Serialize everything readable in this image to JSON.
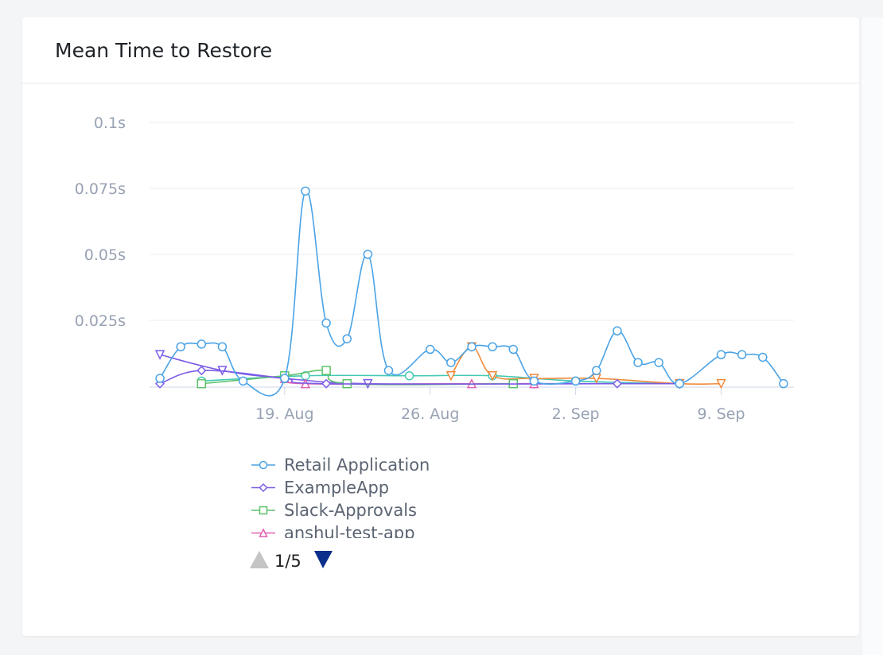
{
  "card": {
    "title": "Mean Time to Restore"
  },
  "colors": {
    "retail": "#4aa3e6",
    "example": "#7b5ce6",
    "slack": "#5cc26a",
    "anshul": "#e05fb0",
    "orange": "#ef8a3c",
    "teal": "#44c9b3",
    "grid": "#eceef1",
    "axis_text": "#98a2b3",
    "legend_text": "#5b6472",
    "nav_active": "#0b2f8a",
    "nav_inactive": "#c4c4c4"
  },
  "legend": {
    "items": [
      {
        "name": "Retail Application",
        "color": "#4aa3e6",
        "marker": "circle"
      },
      {
        "name": "ExampleApp",
        "color": "#7b5ce6",
        "marker": "diamond"
      },
      {
        "name": "Slack-Approvals",
        "color": "#5cc26a",
        "marker": "square"
      },
      {
        "name": "anshul-test-app",
        "color": "#e05fb0",
        "marker": "triangle"
      }
    ],
    "page_text": "1/5",
    "up_icon": "triangle-up-icon",
    "down_icon": "triangle-down-icon"
  },
  "chart_data": {
    "type": "line",
    "title": "Mean Time to Restore",
    "xlabel": "",
    "ylabel": "",
    "x_tick_labels": [
      "19. Aug",
      "26. Aug",
      "2. Sep",
      "9. Sep"
    ],
    "x_tick_days": [
      19,
      26,
      33,
      40
    ],
    "y_tick_labels": [
      "0.025s",
      "0.05s",
      "0.075s",
      "0.1s"
    ],
    "y_tick_values": [
      0.025,
      0.05,
      0.075,
      0.1
    ],
    "ylim": [
      0,
      0.1
    ],
    "xlim": [
      12.5,
      43.5
    ],
    "grid": true,
    "legend_position": "bottom-left",
    "series": [
      {
        "name": "Retail Application",
        "color": "#4aa3e6",
        "marker": "circle",
        "points": [
          [
            13,
            0.003
          ],
          [
            14,
            0.015
          ],
          [
            15,
            0.016
          ],
          [
            16,
            0.015
          ],
          [
            17,
            0.002
          ],
          [
            19,
            0.003
          ],
          [
            20,
            0.074
          ],
          [
            21,
            0.024
          ],
          [
            22,
            0.018
          ],
          [
            23,
            0.05
          ],
          [
            24,
            0.006
          ],
          [
            26,
            0.014
          ],
          [
            27,
            0.009
          ],
          [
            28,
            0.015
          ],
          [
            29,
            0.015
          ],
          [
            30,
            0.014
          ],
          [
            31,
            0.002
          ],
          [
            33,
            0.002
          ],
          [
            34,
            0.006
          ],
          [
            35,
            0.021
          ],
          [
            36,
            0.009
          ],
          [
            37,
            0.009
          ],
          [
            38,
            0.001
          ],
          [
            40,
            0.012
          ],
          [
            41,
            0.012
          ],
          [
            42,
            0.011
          ],
          [
            43,
            0.001
          ]
        ]
      },
      {
        "name": "ExampleApp",
        "color": "#7b5ce6",
        "marker": "diamond",
        "points": [
          [
            13,
            0.001
          ],
          [
            15,
            0.006
          ],
          [
            19,
            0.003
          ],
          [
            21,
            0.001
          ],
          [
            35,
            0.001
          ],
          [
            38,
            0.001
          ]
        ]
      },
      {
        "name": "Slack-Approvals",
        "color": "#5cc26a",
        "marker": "square",
        "points": [
          [
            15,
            0.001
          ],
          [
            19,
            0.004
          ],
          [
            21,
            0.006
          ],
          [
            22,
            0.001
          ],
          [
            30,
            0.001
          ]
        ]
      },
      {
        "name": "anshul-test-app",
        "color": "#e05fb0",
        "marker": "triangle",
        "points": [
          [
            19,
            0.003
          ],
          [
            20,
            0.001
          ],
          [
            28,
            0.001
          ],
          [
            31,
            0.001
          ]
        ]
      },
      {
        "name": "",
        "color": "#ef8a3c",
        "marker": "triangle-down",
        "points": [
          [
            27,
            0.004
          ],
          [
            28,
            0.015
          ],
          [
            29,
            0.004
          ],
          [
            31,
            0.003
          ],
          [
            34,
            0.003
          ],
          [
            38,
            0.001
          ],
          [
            40,
            0.001
          ]
        ]
      },
      {
        "name": "",
        "color": "#7b5ce6",
        "marker": "triangle-down",
        "points": [
          [
            13,
            0.012
          ],
          [
            16,
            0.006
          ],
          [
            19,
            0.003
          ],
          [
            23,
            0.001
          ],
          [
            31,
            0.001
          ],
          [
            38,
            0.001
          ]
        ]
      },
      {
        "name": "",
        "color": "#44c9b3",
        "marker": "circle",
        "points": [
          [
            15,
            0.002
          ],
          [
            20,
            0.004
          ],
          [
            25,
            0.004
          ],
          [
            29,
            0.004
          ],
          [
            33,
            0.002
          ],
          [
            38,
            0.001
          ]
        ]
      }
    ]
  }
}
